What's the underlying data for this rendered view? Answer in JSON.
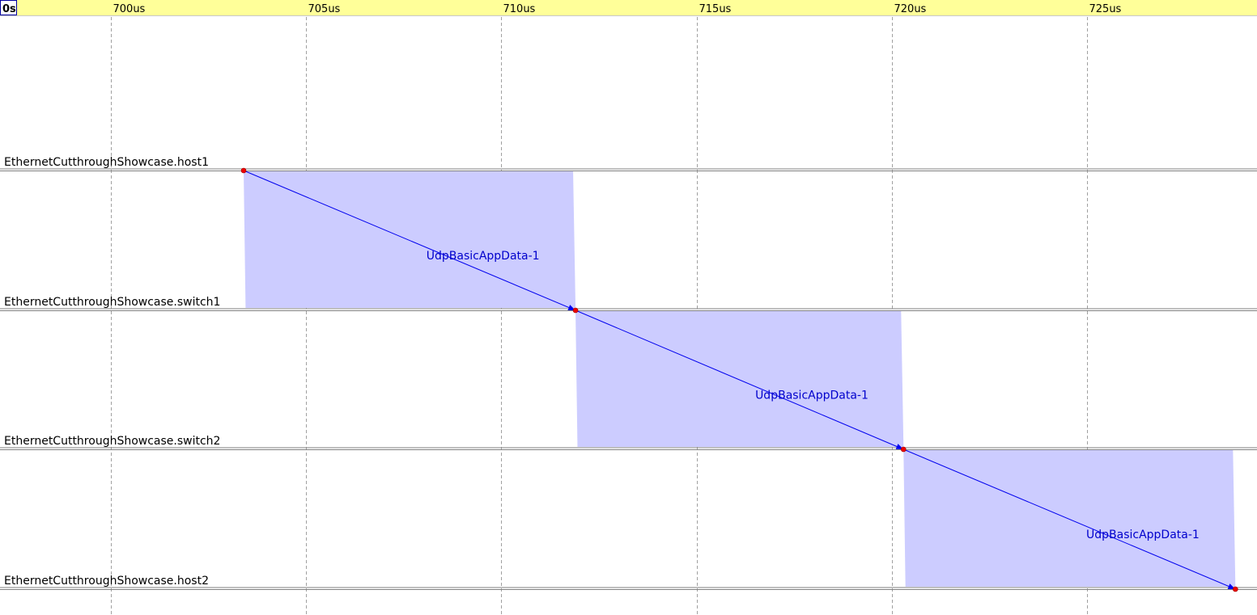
{
  "ruler": {
    "origin_label": "0s",
    "ticks": [
      "700us",
      "705us",
      "710us",
      "715us",
      "720us",
      "725us"
    ]
  },
  "colors": {
    "ruler_background": "#ffff99",
    "gridline": "#a0a0a0",
    "axis_line": "#808080",
    "transmission_fill": "#ccccff",
    "message_arrow": "#0000ee",
    "message_label": "#0000cc",
    "event_dot": "#ee0000"
  },
  "axes": {
    "items": [
      "EthernetCutthroughShowcase.host1",
      "EthernetCutthroughShowcase.switch1",
      "EthernetCutthroughShowcase.switch2",
      "EthernetCutthroughShowcase.host2"
    ]
  },
  "messages": {
    "items": [
      {
        "label": "UdpBasicAppData-1",
        "from": 0,
        "to": 1,
        "send_time_us": 703.4,
        "arrival_time_us": 711.9
      },
      {
        "label": "UdpBasicAppData-1",
        "from": 1,
        "to": 2,
        "send_time_us": 711.9,
        "arrival_time_us": 720.3
      },
      {
        "label": "UdpBasicAppData-1",
        "from": 2,
        "to": 3,
        "send_time_us": 720.3,
        "arrival_time_us": 728.8
      }
    ]
  }
}
